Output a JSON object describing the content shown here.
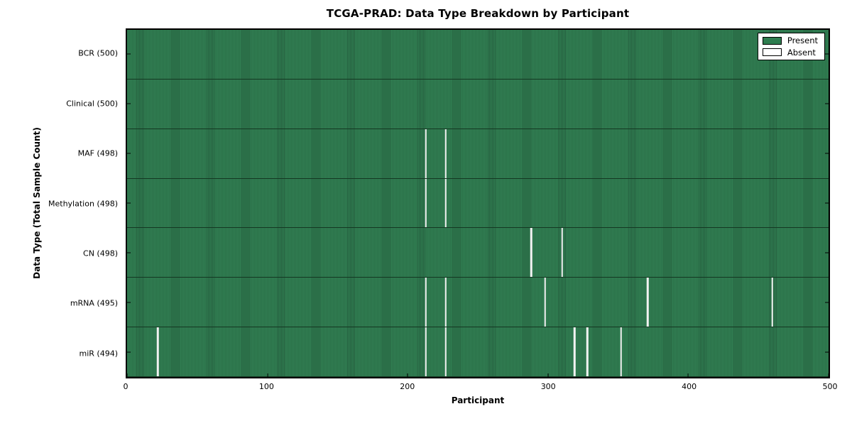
{
  "chart_data": {
    "type": "heatmap",
    "title": "TCGA-PRAD: Data Type Breakdown by Participant",
    "xlabel": "Participant",
    "ylabel": "Data Type (Total Sample Count)",
    "x_range": [
      0,
      500
    ],
    "x_ticks": [
      0,
      100,
      200,
      300,
      400,
      500
    ],
    "grid": false,
    "value_encoding": {
      "present": 1,
      "absent": 0
    },
    "rows": [
      {
        "label": "BCR (500)",
        "data_type": "BCR",
        "total_sample_count": 500,
        "absent_participants": []
      },
      {
        "label": "Clinical (500)",
        "data_type": "Clinical",
        "total_sample_count": 500,
        "absent_participants": []
      },
      {
        "label": "MAF (498)",
        "data_type": "MAF",
        "total_sample_count": 498,
        "absent_participants": [
          213,
          227
        ]
      },
      {
        "label": "Methylation (498)",
        "data_type": "Methylation",
        "total_sample_count": 498,
        "absent_participants": [
          213,
          227
        ]
      },
      {
        "label": "CN (498)",
        "data_type": "CN",
        "total_sample_count": 498,
        "absent_participants": [
          288,
          310
        ]
      },
      {
        "label": "mRNA (495)",
        "data_type": "mRNA",
        "total_sample_count": 495,
        "absent_participants": [
          213,
          227,
          298,
          371,
          460
        ]
      },
      {
        "label": "miR (494)",
        "data_type": "miR",
        "total_sample_count": 494,
        "absent_participants": [
          22,
          213,
          227,
          319,
          328,
          352
        ]
      }
    ],
    "colors": {
      "present": "#2e7d4f",
      "present_stripe_dark": "#255e3e",
      "absent": "#ffffff",
      "row_divider": "#143722",
      "axes_border": "#000000"
    },
    "legend": {
      "position": "upper right",
      "entries": [
        {
          "label": "Present",
          "color": "#2e7d4f"
        },
        {
          "label": "Absent",
          "color": "#ffffff"
        }
      ]
    }
  }
}
